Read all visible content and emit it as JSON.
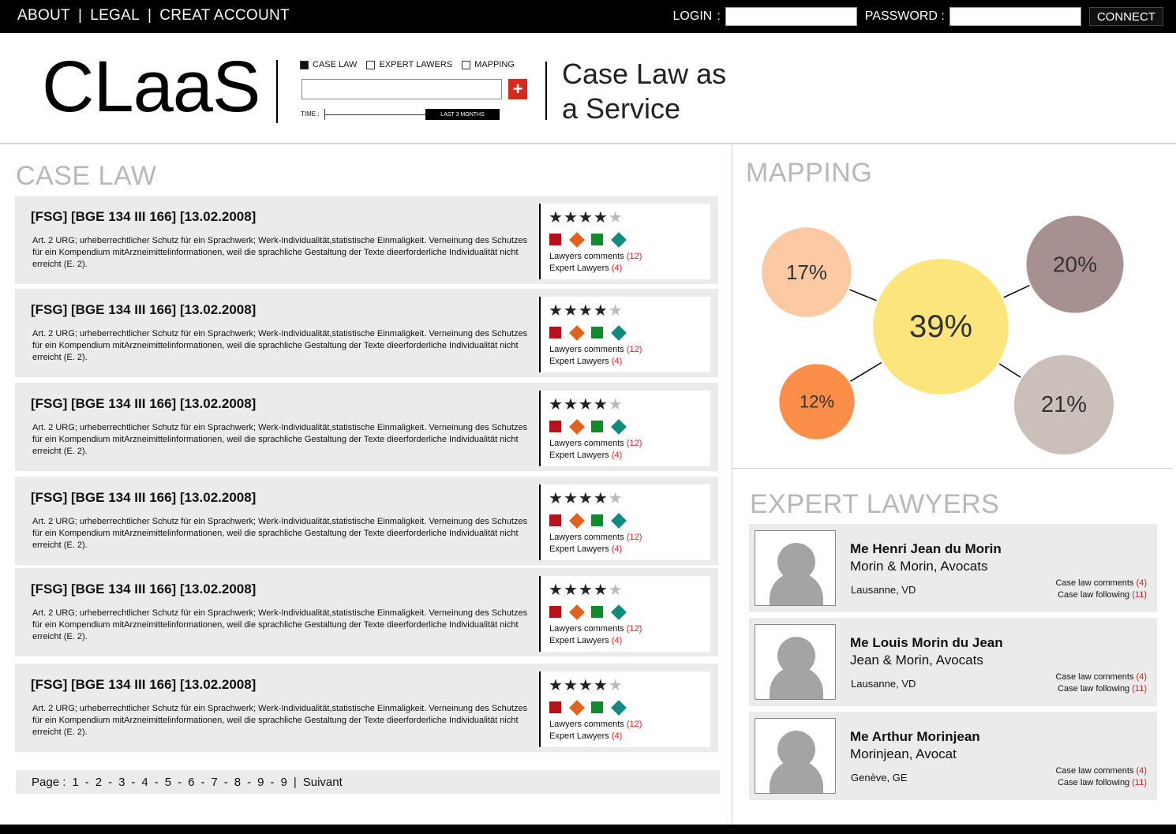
{
  "topbar": {
    "nav": [
      "ABOUT",
      "LEGAL",
      "CREAT ACCOUNT"
    ],
    "separator": "|",
    "login_label": "LOGIN",
    "login_colon": ":",
    "password_label": "PASSWORD :",
    "login_value": "",
    "password_value": "",
    "connect_label": "CONNECT"
  },
  "header": {
    "logo": "CLaaS",
    "filters": [
      {
        "label": "CASE LAW",
        "checked": true
      },
      {
        "label": "EXPERT LAWERS",
        "checked": false
      },
      {
        "label": "MAPPING",
        "checked": false
      }
    ],
    "search_value": "",
    "flag_symbol": "+",
    "time_label": "TIME :",
    "time_value": "LAST 3 MONTHS",
    "tagline_line1": "Case Law as",
    "tagline_line2": "a Service"
  },
  "case_law": {
    "title": "CASE LAW",
    "items": [
      {
        "title": "[FSG] [BGE 134 III 166] [13.02.2008]",
        "text": "Art. 2 URG; urheberrechtlicher Schutz für ein Sprachwerk; Werk-Individualität,statistische Einmaligkeit. Verneinung des Schutzes für ein Kompendium mitArzneimittelinformationen, weil die sprachliche Gestaltung der Texte dieerforderliche Individualität nicht erreicht (E. 2).",
        "rating": 4,
        "comments_label": "Lawyers comments",
        "comments_count": "(12)",
        "experts_label": "Expert Lawyers",
        "experts_count": "(4)"
      },
      {
        "title": "[FSG] [BGE 134 III 166] [13.02.2008]",
        "text": "Art. 2 URG; urheberrechtlicher Schutz für ein Sprachwerk; Werk-Individualität,statistische Einmaligkeit. Verneinung des Schutzes für ein Kompendium mitArzneimittelinformationen, weil die sprachliche Gestaltung der Texte dieerforderliche Individualität nicht erreicht (E. 2).",
        "rating": 4,
        "comments_label": "Lawyers comments",
        "comments_count": "(12)",
        "experts_label": "Expert Lawyers",
        "experts_count": "(4)"
      },
      {
        "title": "[FSG] [BGE 134 III 166] [13.02.2008]",
        "text": "Art. 2 URG; urheberrechtlicher Schutz für ein Sprachwerk; Werk-Individualität,statistische Einmaligkeit. Verneinung des Schutzes für ein Kompendium mitArzneimittelinformationen, weil die sprachliche Gestaltung der Texte dieerforderliche Individualität nicht erreicht (E. 2).",
        "rating": 4,
        "comments_label": "Lawyers comments",
        "comments_count": "(12)",
        "experts_label": "Expert Lawyers",
        "experts_count": "(4)"
      },
      {
        "title": "[FSG] [BGE 134 III 166] [13.02.2008]",
        "text": "Art. 2 URG; urheberrechtlicher Schutz für ein Sprachwerk; Werk-Individualität,statistische Einmaligkeit. Verneinung des Schutzes für ein Kompendium mitArzneimittelinformationen, weil die sprachliche Gestaltung der Texte dieerforderliche Individualität nicht erreicht (E. 2).",
        "rating": 4,
        "comments_label": "Lawyers comments",
        "comments_count": "(12)",
        "experts_label": "Expert Lawyers",
        "experts_count": "(4)"
      },
      {
        "title": "[FSG] [BGE 134 III 166] [13.02.2008]",
        "text": "Art. 2 URG; urheberrechtlicher Schutz für ein Sprachwerk; Werk-Individualität,statistische Einmaligkeit. Verneinung des Schutzes für ein Kompendium mitArzneimittelinformationen, weil die sprachliche Gestaltung der Texte dieerforderliche Individualität nicht erreicht (E. 2).",
        "rating": 4,
        "comments_label": "Lawyers comments",
        "comments_count": "(12)",
        "experts_label": "Expert Lawyers",
        "experts_count": "(4)"
      },
      {
        "title": "[FSG] [BGE 134 III 166] [13.02.2008]",
        "text": "Art. 2 URG; urheberrechtlicher Schutz für ein Sprachwerk; Werk-Individualität,statistische Einmaligkeit. Verneinung des Schutzes für ein Kompendium mitArzneimittelinformationen, weil die sprachliche Gestaltung der Texte dieerforderliche Individualität nicht erreicht (E. 2).",
        "rating": 4,
        "comments_label": "Lawyers comments",
        "comments_count": "(12)",
        "experts_label": "Expert Lawyers",
        "experts_count": "(4)"
      }
    ],
    "max_rating": 5,
    "shape_colors": [
      "#b5121b",
      "#e0621c",
      "#0f8a2c",
      "#138a80"
    ]
  },
  "pagination": {
    "label": "Page :",
    "pages": [
      "1",
      "2",
      "3",
      "4",
      "5",
      "6",
      "7",
      "8",
      "9",
      "9"
    ],
    "page_separator": "-",
    "separator": "|",
    "next_label": "Suivant"
  },
  "mapping": {
    "title": "MAPPING",
    "bubbles": [
      {
        "label": "39%",
        "value": 39,
        "color": "#fde57e"
      },
      {
        "label": "17%",
        "value": 17,
        "color": "#fcc9a2"
      },
      {
        "label": "20%",
        "value": 20,
        "color": "#a79090"
      },
      {
        "label": "12%",
        "value": 12,
        "color": "#fb8f49"
      },
      {
        "label": "21%",
        "value": 21,
        "color": "#cbbfba"
      }
    ]
  },
  "expert_lawyers": {
    "title": "EXPERT LAWYERS",
    "items": [
      {
        "name": "Me Henri Jean du Morin",
        "firm": "Morin & Morin, Avocats",
        "city": "Lausanne, VD",
        "comments_label": "Case law comments",
        "comments_count": "(4)",
        "following_label": "Case law following",
        "following_count": "(11)"
      },
      {
        "name": "Me Louis Morin du Jean",
        "firm": "Jean & Morin, Avocats",
        "city": "Lausanne, VD",
        "comments_label": "Case law comments",
        "comments_count": "(4)",
        "following_label": "Case law following",
        "following_count": "(11)"
      },
      {
        "name": "Me Arthur Morinjean",
        "firm": "Morinjean, Avocat",
        "city": "Genève, GE",
        "comments_label": "Case law comments",
        "comments_count": "(4)",
        "following_label": "Case law following",
        "following_count": "(11)"
      }
    ]
  }
}
